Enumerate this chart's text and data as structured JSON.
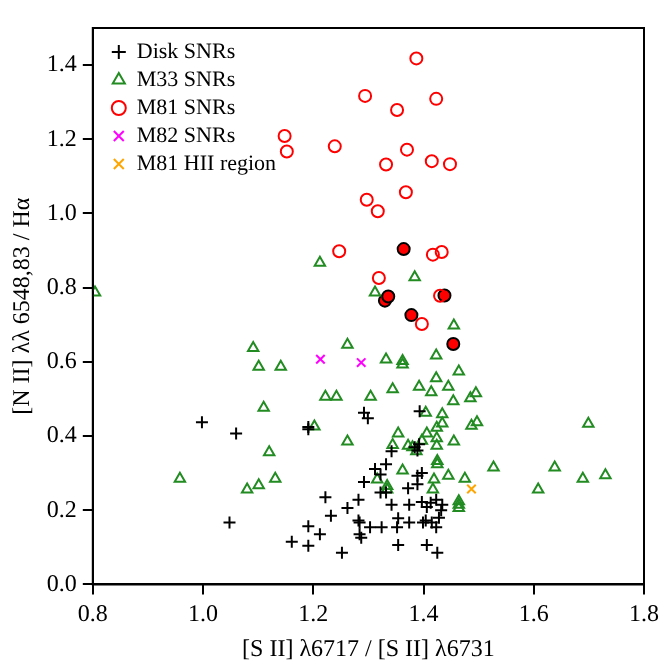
{
  "chart_data": {
    "type": "scatter",
    "xlabel": "[S II] λ6717 / [S II] λ6731",
    "ylabel": "[N II] λλ 6548,83 / Hα",
    "xlim": [
      0.8,
      1.8
    ],
    "ylim": [
      0,
      1.5
    ],
    "xticks": [
      0.8,
      {
        "value": 1,
        "label": "1.0"
      },
      1.2,
      1.4,
      1.6,
      1.8
    ],
    "yticks": [
      {
        "value": 0,
        "label": "0.0"
      },
      0.2,
      0.4,
      0.6,
      0.8,
      {
        "value": 1,
        "label": "1.0"
      },
      1.2,
      1.4
    ],
    "grid": false,
    "legend": "top left",
    "series": [
      {
        "name": "Disk SNRs",
        "color": "#000000",
        "marker": "plus",
        "x": [
          0.998,
          1.06,
          1.048,
          1.191,
          1.191,
          1.161,
          1.191,
          1.191,
          1.212,
          1.222,
          1.232,
          1.252,
          1.262,
          1.282,
          1.282,
          1.284,
          1.287,
          1.292,
          1.292,
          1.299,
          1.312,
          1.322,
          1.332,
          1.324,
          1.303,
          1.284,
          1.322,
          1.332,
          1.342,
          1.342,
          1.352,
          1.354,
          1.354,
          1.372,
          1.374,
          1.374,
          1.384,
          1.389,
          1.392,
          1.389,
          1.389,
          1.393,
          1.397,
          1.397,
          1.399,
          1.404,
          1.406,
          1.406,
          1.413,
          1.415,
          1.423,
          1.423,
          1.428,
          1.425,
          1.434,
          1.432
        ],
        "values": [
          0.437,
          0.407,
          0.167,
          0.424,
          0.418,
          0.115,
          0.157,
          0.104,
          0.135,
          0.235,
          0.185,
          0.085,
          0.206,
          0.228,
          0.172,
          0.135,
          0.126,
          0.276,
          0.463,
          0.448,
          0.311,
          0.296,
          0.324,
          0.154,
          0.154,
          0.167,
          0.248,
          0.248,
          0.215,
          0.359,
          0.154,
          0.178,
          0.106,
          0.259,
          0.215,
          0.167,
          0.37,
          0.361,
          0.378,
          0.293,
          0.27,
          0.467,
          0.3,
          0.222,
          0.167,
          0.172,
          0.106,
          0.209,
          0.22,
          0.167,
          0.154,
          0.228,
          0.18,
          0.085,
          0.215,
          0.2
        ]
      },
      {
        "name": "M33 SNRs",
        "color": "#228b22",
        "marker": "triangle",
        "x": [
          1.212,
          1.384,
          0.804,
          1.312,
          1.091,
          1.101,
          1.141,
          1.11,
          1.12,
          1.131,
          1.101,
          1.08,
          0.958,
          1.202,
          1.222,
          1.242,
          1.262,
          1.304,
          1.262,
          1.332,
          1.362,
          1.362,
          1.344,
          1.354,
          1.344,
          1.362,
          1.316,
          1.334,
          1.334,
          1.372,
          1.38,
          1.387,
          1.397,
          1.392,
          1.404,
          1.414,
          1.406,
          1.423,
          1.423,
          1.424,
          1.424,
          1.424,
          1.425,
          1.425,
          1.419,
          1.417,
          1.434,
          1.434,
          1.445,
          1.455,
          1.464,
          1.454,
          1.455,
          1.445,
          1.464,
          1.464,
          1.464,
          1.475,
          1.485,
          1.495,
          1.487,
          1.497,
          1.527,
          1.608,
          1.638,
          1.689,
          1.73,
          1.699
        ],
        "values": [
          0.867,
          0.828,
          0.787,
          0.787,
          0.637,
          0.587,
          0.587,
          0.476,
          0.356,
          0.285,
          0.267,
          0.256,
          0.285,
          0.426,
          0.506,
          0.506,
          0.646,
          0.506,
          0.385,
          0.606,
          0.602,
          0.593,
          0.526,
          0.407,
          0.376,
          0.307,
          0.283,
          0.256,
          0.265,
          0.374,
          0.37,
          0.359,
          0.387,
          0.533,
          0.463,
          0.518,
          0.407,
          0.617,
          0.556,
          0.422,
          0.394,
          0.374,
          0.333,
          0.324,
          0.283,
          0.256,
          0.459,
          0.434,
          0.533,
          0.698,
          0.574,
          0.494,
          0.385,
          0.293,
          0.224,
          0.215,
          0.206,
          0.285,
          0.502,
          0.515,
          0.428,
          0.437,
          0.315,
          0.256,
          0.315,
          0.285,
          0.294,
          0.433
        ]
      },
      {
        "name": "M81 SNRs",
        "color": "#ff0000",
        "marker": "circle",
        "x": [
          1.387,
          1.294,
          1.352,
          1.423,
          1.148,
          1.152,
          1.239,
          1.37,
          1.332,
          1.415,
          1.448,
          1.297,
          1.368,
          1.317,
          1.247,
          1.417,
          1.433,
          1.319,
          1.43,
          1.397
        ],
        "values": [
          1.418,
          1.317,
          1.279,
          1.309,
          1.209,
          1.167,
          1.181,
          1.172,
          1.132,
          1.141,
          1.133,
          1.037,
          1.057,
          1.006,
          0.898,
          0.889,
          0.896,
          0.826,
          0.778,
          0.702
        ]
      },
      {
        "color": "#ff0000",
        "marker": "circle",
        "x": [
          1.364,
          1.438,
          1.33,
          1.336,
          1.378,
          1.454
        ],
        "values": [
          0.904,
          0.779,
          0.765,
          0.776,
          0.726,
          0.648
        ]
      },
      {
        "name": "M82 SNRs",
        "color": "#ff00ff",
        "marker": "cross",
        "x": [
          1.213,
          1.287
        ],
        "values": [
          0.607,
          0.598
        ]
      },
      {
        "name": "M81 HII region",
        "color": "#ffa500",
        "marker": "cross",
        "x": [
          1.487
        ],
        "values": [
          0.257
        ]
      }
    ]
  }
}
